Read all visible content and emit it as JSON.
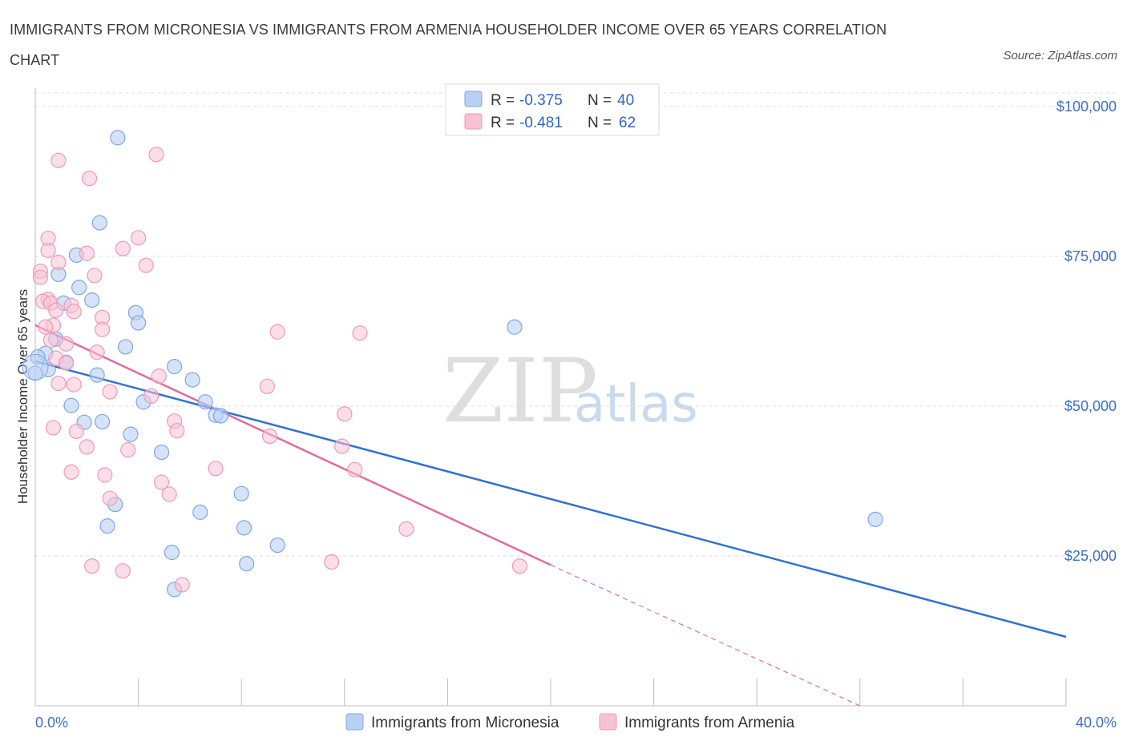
{
  "header": {
    "title": "IMMIGRANTS FROM MICRONESIA VS IMMIGRANTS FROM ARMENIA HOUSEHOLDER INCOME OVER 65 YEARS CORRELATION CHART",
    "source": "Source: ZipAtlas.com"
  },
  "watermark": {
    "zip": "ZIP",
    "atlas": "atlas"
  },
  "legend": {
    "micronesia": {
      "r_label": "R =",
      "r_value": "-0.375",
      "n_label": "N =",
      "n_value": "40"
    },
    "armenia": {
      "r_label": "R =",
      "r_value": "-0.481",
      "n_label": "N =",
      "n_value": "62"
    }
  },
  "colors": {
    "micronesia_fill": "#b9d0f5",
    "micronesia_stroke": "#7fa6e6",
    "micronesia_line": "#2f72cf",
    "armenia_fill": "#f7c3d3",
    "armenia_stroke": "#ee9ab5",
    "armenia_line": "#e36b98",
    "grid": "#dcdcdc",
    "tick_label": "#3d6fc4"
  },
  "chart_data": {
    "type": "scatter",
    "title": "IMMIGRANTS FROM MICRONESIA VS IMMIGRANTS FROM ARMENIA HOUSEHOLDER INCOME OVER 65 YEARS CORRELATION CHART",
    "xlabel": "",
    "ylabel": "Householder Income Over 65 years",
    "xlim": [
      0,
      40
    ],
    "ylim": [
      0,
      100000
    ],
    "x_tick_labels": [
      "0.0%",
      "40.0%"
    ],
    "y_ticks": [
      25000,
      50000,
      75000,
      100000
    ],
    "y_tick_labels": [
      "$25,000",
      "$50,000",
      "$75,000",
      "$100,000"
    ],
    "grid": true,
    "legend_position": "bottom",
    "series": [
      {
        "name": "Immigrants from Micronesia",
        "R": -0.375,
        "N": 40,
        "trend": {
          "x": [
            0,
            40
          ],
          "y": [
            57500,
            11500
          ],
          "dashed_from": null
        },
        "points": [
          [
            3.2,
            94800
          ],
          [
            2.5,
            80600
          ],
          [
            1.6,
            75200
          ],
          [
            0.9,
            72000
          ],
          [
            1.7,
            69800
          ],
          [
            2.2,
            67700
          ],
          [
            1.1,
            67200
          ],
          [
            3.9,
            65600
          ],
          [
            4.0,
            63900
          ],
          [
            18.6,
            63200
          ],
          [
            0.8,
            61200
          ],
          [
            3.5,
            59900
          ],
          [
            0.4,
            58800
          ],
          [
            0.1,
            58200
          ],
          [
            1.2,
            57300
          ],
          [
            5.4,
            56600
          ],
          [
            0.5,
            56100
          ],
          [
            2.4,
            55200
          ],
          [
            6.1,
            54400
          ],
          [
            0.0,
            55500
          ],
          [
            4.2,
            50700
          ],
          [
            6.6,
            50700
          ],
          [
            1.4,
            50100
          ],
          [
            7.0,
            48500
          ],
          [
            7.2,
            48400
          ],
          [
            2.6,
            47400
          ],
          [
            1.9,
            47300
          ],
          [
            3.7,
            45300
          ],
          [
            4.9,
            42300
          ],
          [
            8.0,
            35400
          ],
          [
            3.1,
            33600
          ],
          [
            6.4,
            32300
          ],
          [
            2.8,
            30000
          ],
          [
            8.1,
            29700
          ],
          [
            9.4,
            26800
          ],
          [
            5.3,
            25600
          ],
          [
            8.2,
            23700
          ],
          [
            5.4,
            19400
          ],
          [
            32.6,
            31100
          ]
        ]
      },
      {
        "name": "Immigrants from Armenia",
        "R": -0.481,
        "N": 62,
        "trend": {
          "x": [
            0,
            20
          ],
          "y": [
            63500,
            23500
          ],
          "dashed_to": [
            32,
            0
          ]
        },
        "points": [
          [
            4.7,
            92000
          ],
          [
            0.9,
            91000
          ],
          [
            2.1,
            88000
          ],
          [
            0.5,
            78000
          ],
          [
            4.0,
            78100
          ],
          [
            3.4,
            76300
          ],
          [
            0.5,
            76000
          ],
          [
            2.0,
            75500
          ],
          [
            0.9,
            74000
          ],
          [
            4.3,
            73500
          ],
          [
            0.2,
            72500
          ],
          [
            0.2,
            71500
          ],
          [
            2.3,
            71800
          ],
          [
            0.5,
            67800
          ],
          [
            0.3,
            67500
          ],
          [
            0.6,
            67200
          ],
          [
            1.4,
            66800
          ],
          [
            0.8,
            66000
          ],
          [
            1.5,
            65800
          ],
          [
            2.6,
            64800
          ],
          [
            0.7,
            63500
          ],
          [
            0.4,
            63200
          ],
          [
            2.6,
            62800
          ],
          [
            9.4,
            62400
          ],
          [
            12.6,
            62200
          ],
          [
            0.6,
            61000
          ],
          [
            1.2,
            60400
          ],
          [
            2.4,
            59000
          ],
          [
            0.8,
            58000
          ],
          [
            1.2,
            57200
          ],
          [
            4.8,
            55000
          ],
          [
            0.9,
            53800
          ],
          [
            1.5,
            53600
          ],
          [
            9.0,
            53300
          ],
          [
            2.9,
            52400
          ],
          [
            4.5,
            51700
          ],
          [
            12.0,
            48700
          ],
          [
            5.4,
            47500
          ],
          [
            0.7,
            46400
          ],
          [
            1.6,
            45800
          ],
          [
            5.5,
            45900
          ],
          [
            9.1,
            45000
          ],
          [
            11.9,
            43300
          ],
          [
            2.0,
            43200
          ],
          [
            3.6,
            42700
          ],
          [
            7.0,
            39600
          ],
          [
            12.4,
            39400
          ],
          [
            1.4,
            39000
          ],
          [
            2.7,
            38500
          ],
          [
            4.9,
            37300
          ],
          [
            5.2,
            35300
          ],
          [
            2.9,
            34600
          ],
          [
            14.4,
            29500
          ],
          [
            11.5,
            24000
          ],
          [
            2.2,
            23300
          ],
          [
            3.4,
            22500
          ],
          [
            5.7,
            20200
          ],
          [
            18.8,
            23300
          ]
        ]
      }
    ]
  },
  "bottom_legend": {
    "micronesia_label": "Immigrants from Micronesia",
    "armenia_label": "Immigrants from Armenia"
  }
}
